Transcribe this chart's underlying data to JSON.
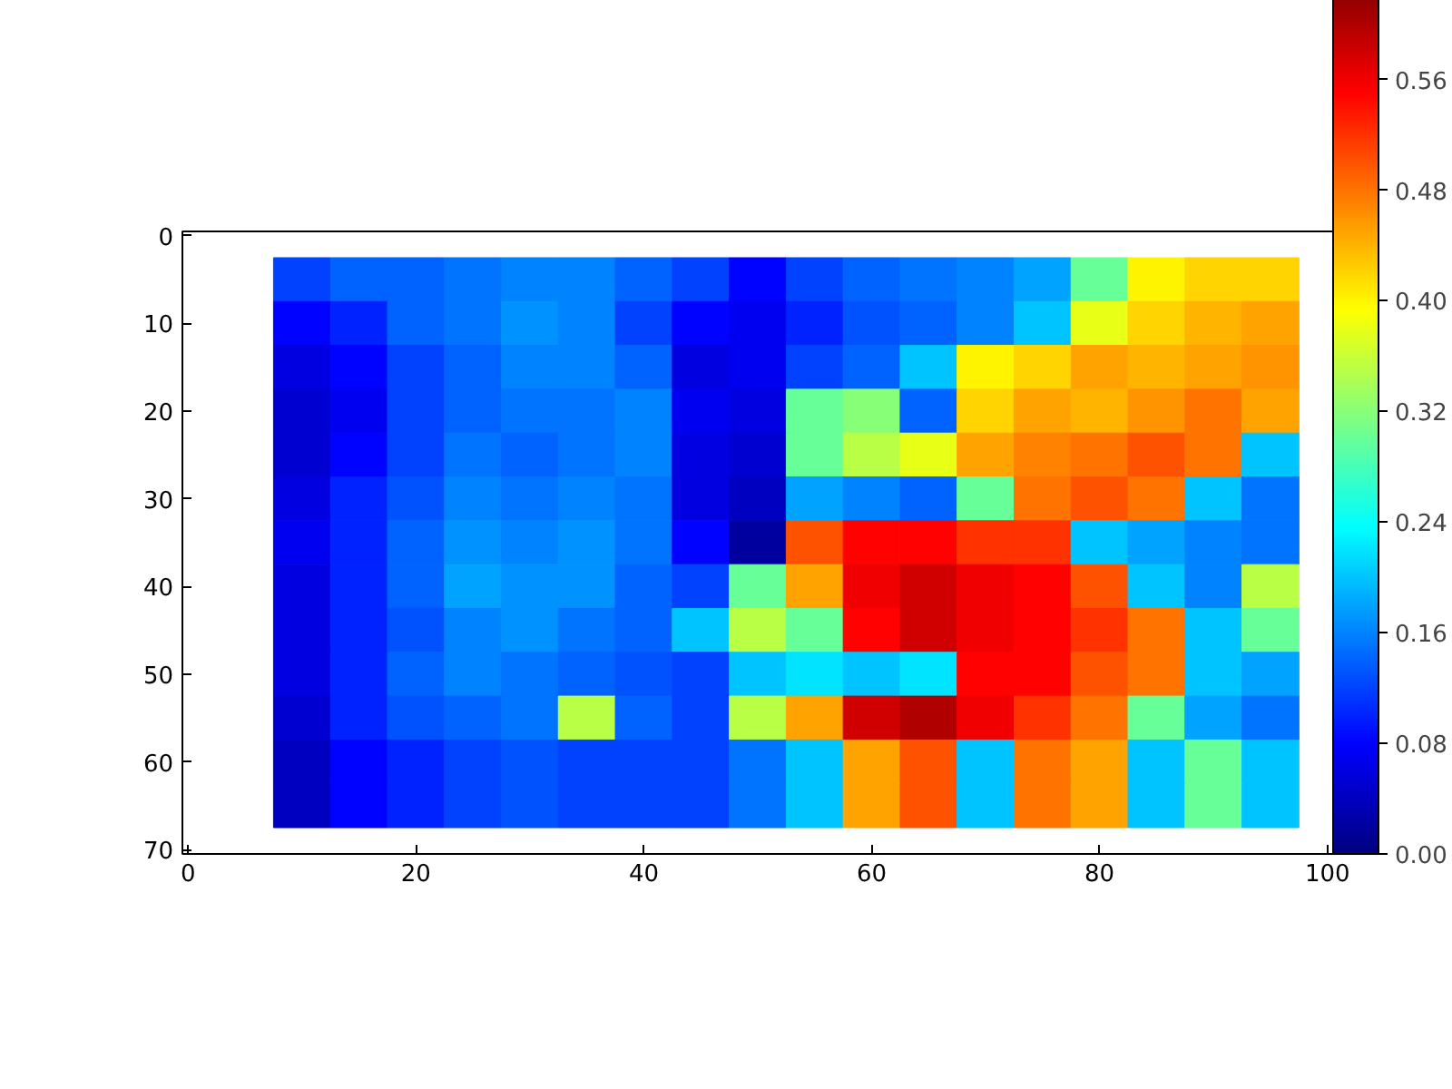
{
  "chart_data": {
    "type": "heatmap",
    "categories": [
      "0",
      null,
      null,
      null,
      "20",
      null,
      null,
      null,
      "40",
      null,
      null,
      null,
      "60",
      null,
      null,
      null,
      "80",
      null,
      null,
      null,
      "100"
    ],
    "y_categories": [
      "0",
      null,
      "10",
      null,
      "20",
      null,
      "30",
      null,
      "40",
      null,
      "50",
      null,
      "60",
      null,
      "70"
    ],
    "clim": [
      0,
      0.63
    ],
    "cticks": [
      {
        "value": 0,
        "label": "0.00"
      },
      {
        "value": 0.08,
        "label": "0.08"
      },
      {
        "value": 0.16,
        "label": "0.16"
      },
      {
        "value": 0.24,
        "label": "0.24"
      },
      {
        "value": 0.32,
        "label": "0.32"
      },
      {
        "value": 0.4,
        "label": "0.40"
      },
      {
        "value": 0.48,
        "label": "0.48"
      },
      {
        "value": 0.56,
        "label": "0.56"
      }
    ],
    "cells": [
      [
        null,
        null,
        null,
        null,
        null,
        null,
        null,
        null,
        null,
        null,
        null,
        null,
        null,
        null,
        null,
        null,
        null,
        null,
        null,
        null,
        null
      ],
      [
        null,
        null,
        0.12,
        0.14,
        0.14,
        0.15,
        0.16,
        0.16,
        0.14,
        0.12,
        0.08,
        0.12,
        0.14,
        0.15,
        0.16,
        0.18,
        0.3,
        0.4,
        0.42,
        0.42,
        null
      ],
      [
        null,
        null,
        0.08,
        0.1,
        0.14,
        0.15,
        0.17,
        0.16,
        0.12,
        0.08,
        0.07,
        0.1,
        0.13,
        0.14,
        0.16,
        0.2,
        0.38,
        0.42,
        0.44,
        0.45,
        null
      ],
      [
        null,
        null,
        0.06,
        0.08,
        0.12,
        0.14,
        0.16,
        0.16,
        0.14,
        0.06,
        0.07,
        0.12,
        0.14,
        0.2,
        0.4,
        0.42,
        0.45,
        0.44,
        0.45,
        0.46,
        null
      ],
      [
        null,
        null,
        0.05,
        0.07,
        0.12,
        0.14,
        0.15,
        0.15,
        0.16,
        0.07,
        0.06,
        0.3,
        0.32,
        0.14,
        0.42,
        0.45,
        0.44,
        0.46,
        0.48,
        0.45,
        null
      ],
      [
        null,
        null,
        0.05,
        0.08,
        0.12,
        0.15,
        0.14,
        0.15,
        0.16,
        0.06,
        0.05,
        0.3,
        0.35,
        0.38,
        0.45,
        0.47,
        0.48,
        0.5,
        0.48,
        0.2,
        null
      ],
      [
        null,
        null,
        0.06,
        0.1,
        0.13,
        0.16,
        0.15,
        0.16,
        0.15,
        0.06,
        0.04,
        0.18,
        0.16,
        0.14,
        0.3,
        0.48,
        0.5,
        0.48,
        0.2,
        0.15,
        null
      ],
      [
        null,
        null,
        0.07,
        0.1,
        0.14,
        0.17,
        0.16,
        0.17,
        0.15,
        0.08,
        0.02,
        0.5,
        0.55,
        0.55,
        0.52,
        0.52,
        0.2,
        0.18,
        0.16,
        0.15,
        null
      ],
      [
        null,
        null,
        0.06,
        0.1,
        0.14,
        0.18,
        0.17,
        0.17,
        0.14,
        0.12,
        0.3,
        0.45,
        0.56,
        0.58,
        0.56,
        0.55,
        0.5,
        0.2,
        0.16,
        0.35,
        null
      ],
      [
        null,
        null,
        0.06,
        0.1,
        0.13,
        0.16,
        0.17,
        0.15,
        0.14,
        0.2,
        0.35,
        0.3,
        0.55,
        0.58,
        0.56,
        0.55,
        0.52,
        0.48,
        0.2,
        0.3,
        null
      ],
      [
        null,
        null,
        0.06,
        0.1,
        0.14,
        0.16,
        0.15,
        0.14,
        0.13,
        0.12,
        0.2,
        0.22,
        0.2,
        0.22,
        0.55,
        0.55,
        0.5,
        0.48,
        0.2,
        0.18,
        null
      ],
      [
        null,
        null,
        0.05,
        0.1,
        0.13,
        0.14,
        0.15,
        0.35,
        0.14,
        0.12,
        0.35,
        0.45,
        0.58,
        0.6,
        0.56,
        0.52,
        0.48,
        0.3,
        0.18,
        0.15,
        null
      ],
      [
        null,
        null,
        0.04,
        0.08,
        0.1,
        0.12,
        0.13,
        0.12,
        0.12,
        0.12,
        0.15,
        0.2,
        0.45,
        0.5,
        0.2,
        0.48,
        0.45,
        0.2,
        0.3,
        0.2,
        null
      ],
      [
        null,
        null,
        0.04,
        0.08,
        0.1,
        0.12,
        0.13,
        0.12,
        0.12,
        0.12,
        0.15,
        0.2,
        0.45,
        0.5,
        0.2,
        0.48,
        0.45,
        0.2,
        0.3,
        0.2,
        null
      ],
      [
        null,
        null,
        null,
        null,
        null,
        null,
        null,
        null,
        null,
        null,
        null,
        null,
        null,
        null,
        null,
        null,
        null,
        null,
        null,
        null,
        null
      ]
    ]
  }
}
